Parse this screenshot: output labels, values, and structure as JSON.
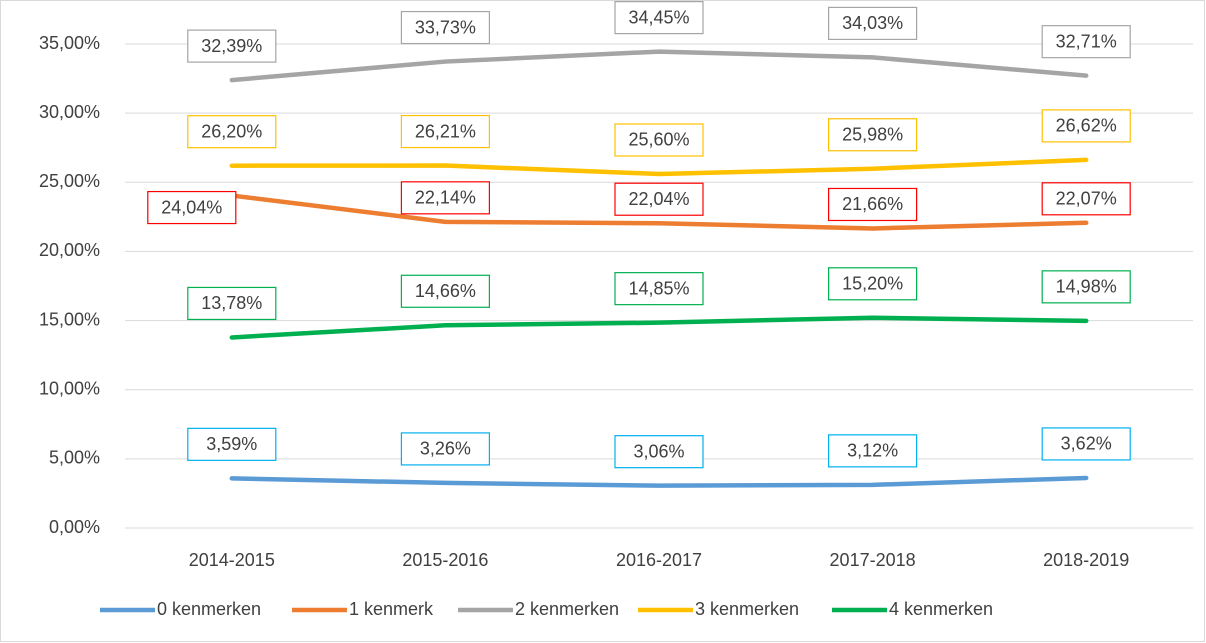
{
  "chart_data": {
    "type": "line",
    "categories": [
      "2014-2015",
      "2015-2016",
      "2016-2017",
      "2017-2018",
      "2018-2019"
    ],
    "series": [
      {
        "name": "0 kenmerken",
        "color": "#5b9bd5",
        "label_color": "#00b0f0",
        "values": [
          3.59,
          3.26,
          3.06,
          3.12,
          3.62
        ],
        "value_labels": [
          "3,59%",
          "3,26%",
          "3,06%",
          "3,12%",
          "3,62%"
        ]
      },
      {
        "name": "1 kenmerk",
        "color": "#ed7d31",
        "label_color": "#ff0000",
        "values": [
          24.04,
          22.14,
          22.04,
          21.66,
          22.07
        ],
        "value_labels": [
          "24,04%",
          "22,14%",
          "22,04%",
          "21,66%",
          "22,07%"
        ]
      },
      {
        "name": "2 kenmerken",
        "color": "#a5a5a5",
        "label_color": "#a5a5a5",
        "values": [
          32.39,
          33.73,
          34.45,
          34.03,
          32.71
        ],
        "value_labels": [
          "32,39%",
          "33,73%",
          "34,45%",
          "34,03%",
          "32,71%"
        ]
      },
      {
        "name": "3 kenmerken",
        "color": "#ffc000",
        "label_color": "#ffc000",
        "values": [
          26.2,
          26.21,
          25.6,
          25.98,
          26.62
        ],
        "value_labels": [
          "26,20%",
          "26,21%",
          "25,60%",
          "25,98%",
          "26,62%"
        ]
      },
      {
        "name": "4 kenmerken",
        "color": "#00b050",
        "label_color": "#00b050",
        "values": [
          13.78,
          14.66,
          14.85,
          15.2,
          14.98
        ],
        "value_labels": [
          "13,78%",
          "14,66%",
          "14,85%",
          "15,20%",
          "14,98%"
        ]
      }
    ],
    "ylim": [
      0,
      35
    ],
    "yticks": [
      {
        "value": 0,
        "label": "0,00%"
      },
      {
        "value": 5,
        "label": "5,00%"
      },
      {
        "value": 10,
        "label": "10,00%"
      },
      {
        "value": 15,
        "label": "15,00%"
      },
      {
        "value": 20,
        "label": "20,00%"
      },
      {
        "value": 25,
        "label": "25,00%"
      },
      {
        "value": 30,
        "label": "30,00%"
      },
      {
        "value": 35,
        "label": "35,00%"
      }
    ],
    "grid": true,
    "legend": "bottom"
  }
}
